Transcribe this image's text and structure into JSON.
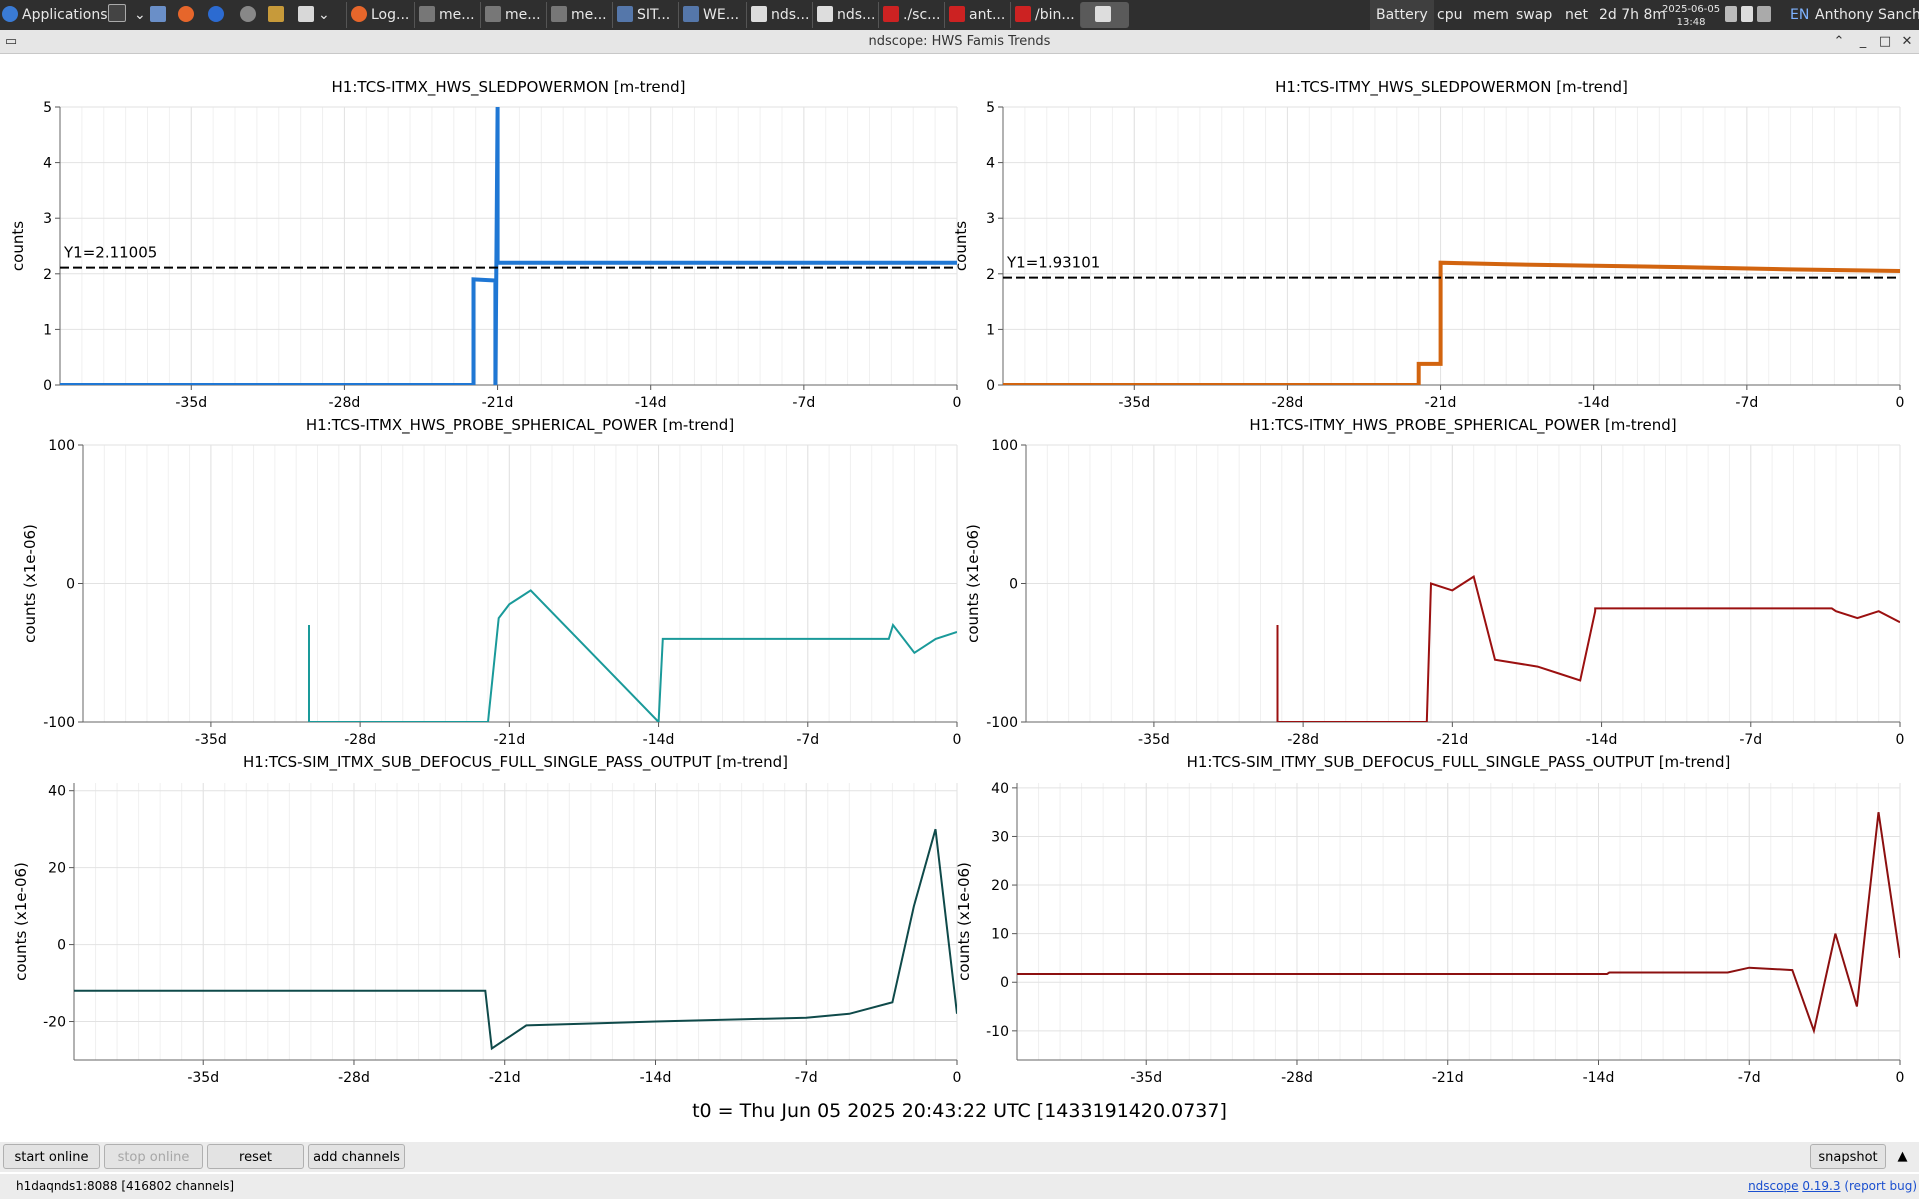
{
  "taskbar": {
    "apps_label": "Applications",
    "tasks": [
      "Log...",
      "me...",
      "me...",
      "me...",
      "SIT...",
      "WE...",
      "nds...",
      "nds...",
      "./sc...",
      "ant...",
      "/bin..."
    ],
    "battery": "Battery",
    "cpu": "cpu",
    "mem": "mem",
    "swap": "swap",
    "net": "net",
    "uptime": "2d 7h 8m",
    "date": "2025-06-05",
    "time": "13:48",
    "lang": "EN",
    "user": "Anthony Sanchez"
  },
  "window": {
    "title": "ndscope: HWS Famis Trends"
  },
  "plots": [
    {
      "title": "H1:TCS-ITMX_HWS_SLEDPOWERMON [m-trend]",
      "ylabel": "counts",
      "yticks": [
        "0",
        "1",
        "2",
        "3",
        "4",
        "5"
      ],
      "xticks": [
        "-35d",
        "-28d",
        "-21d",
        "-14d",
        "-7d",
        "0"
      ],
      "color": "#1f77d4",
      "cursor_label": "Y1=2.11005",
      "cursor_value": 2.11005,
      "ylim": [
        0,
        5
      ]
    },
    {
      "title": "H1:TCS-ITMY_HWS_SLEDPOWERMON [m-trend]",
      "ylabel": "counts",
      "yticks": [
        "0",
        "1",
        "2",
        "3",
        "4",
        "5"
      ],
      "xticks": [
        "-35d",
        "-28d",
        "-21d",
        "-14d",
        "-7d",
        "0"
      ],
      "color": "#d2640f",
      "cursor_label": "Y1=1.93101",
      "cursor_value": 1.93101,
      "ylim": [
        0,
        5
      ]
    },
    {
      "title": "H1:TCS-ITMX_HWS_PROBE_SPHERICAL_POWER [m-trend]",
      "ylabel": "counts (x1e-06)",
      "yticks": [
        "-100",
        "0",
        "100"
      ],
      "xticks": [
        "-35d",
        "-28d",
        "-21d",
        "-14d",
        "-7d",
        "0"
      ],
      "color": "#1a9a9a",
      "ylim": [
        -100,
        100
      ]
    },
    {
      "title": "H1:TCS-ITMY_HWS_PROBE_SPHERICAL_POWER [m-trend]",
      "ylabel": "counts (x1e-06)",
      "yticks": [
        "-100",
        "0",
        "100"
      ],
      "xticks": [
        "-35d",
        "-28d",
        "-21d",
        "-14d",
        "-7d",
        "0"
      ],
      "color": "#9b1010",
      "ylim": [
        -100,
        100
      ]
    },
    {
      "title": "H1:TCS-SIM_ITMX_SUB_DEFOCUS_FULL_SINGLE_PASS_OUTPUT [m-trend]",
      "ylabel": "counts (x1e-06)",
      "yticks": [
        "-20",
        "0",
        "20",
        "40"
      ],
      "xticks": [
        "-35d",
        "-28d",
        "-21d",
        "-14d",
        "-7d",
        "0"
      ],
      "color": "#0f4a4a",
      "ylim": [
        -30,
        42
      ]
    },
    {
      "title": "H1:TCS-SIM_ITMY_SUB_DEFOCUS_FULL_SINGLE_PASS_OUTPUT [m-trend]",
      "ylabel": "counts (x1e-06)",
      "yticks": [
        "-10",
        "0",
        "10",
        "20",
        "30",
        "40"
      ],
      "xticks": [
        "-35d",
        "-28d",
        "-21d",
        "-14d",
        "-7d",
        "0"
      ],
      "color": "#8c1010",
      "ylim": [
        -16,
        41
      ]
    }
  ],
  "chart_data": [
    {
      "type": "line",
      "title": "H1:TCS-ITMX_HWS_SLEDPOWERMON [m-trend]",
      "ylabel": "counts",
      "xlim": [
        -41,
        0
      ],
      "ylim": [
        0,
        5
      ],
      "series": [
        {
          "x": [
            -41,
            -22.1,
            -22.1,
            -21.1,
            -21.1,
            -21.0,
            -21.0,
            0
          ],
          "y": [
            0,
            0,
            1.9,
            1.88,
            0,
            5,
            2.2,
            2.2
          ]
        }
      ]
    },
    {
      "type": "line",
      "title": "H1:TCS-ITMY_HWS_SLEDPOWERMON [m-trend]",
      "ylabel": "counts",
      "xlim": [
        -41,
        0
      ],
      "ylim": [
        0,
        5
      ],
      "series": [
        {
          "x": [
            -41,
            -22.0,
            -22.0,
            -21.0,
            -21.0,
            -18,
            -10,
            -5,
            0
          ],
          "y": [
            0,
            0,
            0.38,
            0.38,
            2.2,
            2.17,
            2.12,
            2.08,
            2.05
          ]
        }
      ]
    },
    {
      "type": "line",
      "title": "H1:TCS-ITMX_HWS_PROBE_SPHERICAL_POWER [m-trend]",
      "ylabel": "counts (x1e-06)",
      "xlim": [
        -41,
        0
      ],
      "ylim": [
        -100,
        100
      ],
      "series": [
        {
          "x": [
            -30.4,
            -30.4,
            -30.4,
            -22,
            -21.5,
            -21,
            -20.5,
            -20,
            -14,
            -13.8,
            -3.2,
            -3,
            -2,
            -1,
            0
          ],
          "y": [
            -100,
            -30,
            -100,
            -100,
            -25,
            -15,
            -10,
            -5,
            -100,
            -40,
            -40,
            -30,
            -50,
            -40,
            -35
          ]
        }
      ]
    },
    {
      "type": "line",
      "title": "H1:TCS-ITMY_HWS_PROBE_SPHERICAL_POWER [m-trend]",
      "ylabel": "counts (x1e-06)",
      "xlim": [
        -41,
        0
      ],
      "ylim": [
        -100,
        100
      ],
      "series": [
        {
          "x": [
            -29.2,
            -29.2,
            -29.2,
            -22.2,
            -22,
            -21,
            -20,
            -19,
            -17,
            -16,
            -15,
            -14.3,
            -14.3,
            -3.2,
            -3,
            -2,
            -1,
            0
          ],
          "y": [
            -100,
            -30,
            -100,
            -100,
            0,
            -5,
            5,
            -55,
            -60,
            -65,
            -70,
            -20,
            -18,
            -18,
            -20,
            -25,
            -20,
            -28
          ]
        }
      ]
    },
    {
      "type": "line",
      "title": "H1:TCS-SIM_ITMX_SUB_DEFOCUS_FULL_SINGLE_PASS_OUTPUT [m-trend]",
      "ylabel": "counts (x1e-06)",
      "xlim": [
        -41,
        0
      ],
      "ylim": [
        -30,
        42
      ],
      "series": [
        {
          "x": [
            -41,
            -21.9,
            -21.6,
            -20,
            -17,
            -14,
            -7,
            -5,
            -3,
            -2,
            -1,
            0
          ],
          "y": [
            -12,
            -12,
            -27,
            -21,
            -20.5,
            -20,
            -19,
            -18,
            -15,
            10,
            30,
            -18
          ]
        }
      ]
    },
    {
      "type": "line",
      "title": "H1:TCS-SIM_ITMY_SUB_DEFOCUS_FULL_SINGLE_PASS_OUTPUT [m-trend]",
      "ylabel": "counts (x1e-06)",
      "xlim": [
        -41,
        0
      ],
      "ylim": [
        -16,
        41
      ],
      "series": [
        {
          "x": [
            -41,
            -13.6,
            -13.5,
            -8,
            -7,
            -5,
            -4,
            -3,
            -2,
            -1,
            0
          ],
          "y": [
            1.7,
            1.7,
            2,
            2,
            3,
            2.5,
            -10,
            10,
            -5,
            35,
            5
          ]
        }
      ]
    }
  ],
  "t0_label": "t0 = Thu Jun 05 2025 20:43:22 UTC [1433191420.0737]",
  "buttons": {
    "start_online": "start online",
    "stop_online": "stop online",
    "reset": "reset",
    "add_channels": "add channels",
    "snapshot": "snapshot"
  },
  "status": {
    "server": "h1daqnds1:8088  [416802 channels]",
    "app": "ndscope",
    "version": "0.19.3",
    "report": "(report bug)"
  }
}
